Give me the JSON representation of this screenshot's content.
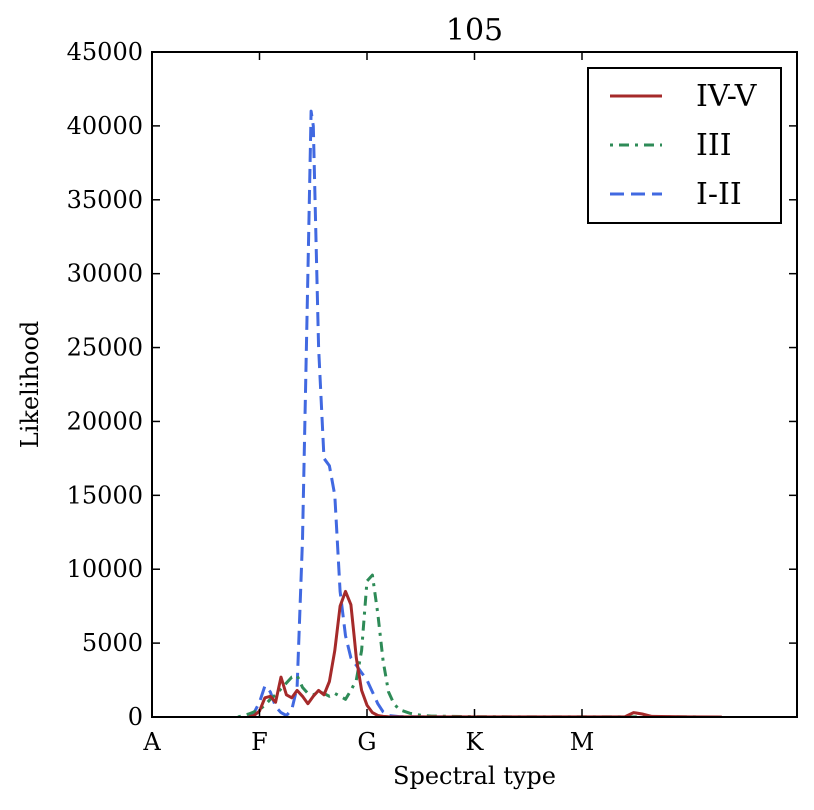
{
  "chart_data": {
    "type": "line",
    "title": "105",
    "xlabel": "Spectral type",
    "ylabel": "Likelihood",
    "xlim": [
      0,
      6
    ],
    "ylim": [
      0,
      45000
    ],
    "x_ticks": [
      {
        "value": 0,
        "label": "A"
      },
      {
        "value": 1,
        "label": "F"
      },
      {
        "value": 2,
        "label": "G"
      },
      {
        "value": 3,
        "label": "K"
      },
      {
        "value": 4,
        "label": "M"
      }
    ],
    "y_ticks": [
      {
        "value": 0,
        "label": "0"
      },
      {
        "value": 5000,
        "label": "5000"
      },
      {
        "value": 10000,
        "label": "10000"
      },
      {
        "value": 15000,
        "label": "15000"
      },
      {
        "value": 20000,
        "label": "20000"
      },
      {
        "value": 25000,
        "label": "25000"
      },
      {
        "value": 30000,
        "label": "30000"
      },
      {
        "value": 35000,
        "label": "35000"
      },
      {
        "value": 40000,
        "label": "40000"
      },
      {
        "value": 45000,
        "label": "45000"
      }
    ],
    "legend_position": "top-right",
    "series": [
      {
        "name": "IV-V",
        "color": "#a52a2a",
        "style": "solid",
        "x": [
          0.9,
          0.95,
          1.0,
          1.05,
          1.1,
          1.15,
          1.2,
          1.25,
          1.3,
          1.35,
          1.4,
          1.45,
          1.5,
          1.55,
          1.6,
          1.65,
          1.7,
          1.75,
          1.8,
          1.85,
          1.88,
          1.9,
          1.95,
          2.0,
          2.05,
          2.1,
          2.15,
          2.2,
          2.3,
          2.5,
          3.0,
          3.5,
          4.0,
          4.4,
          4.48,
          4.56,
          4.65,
          5.0,
          5.3
        ],
        "y": [
          0,
          100,
          400,
          1300,
          1400,
          1000,
          2700,
          1500,
          1300,
          1800,
          1400,
          900,
          1400,
          1800,
          1500,
          2400,
          4500,
          7500,
          8500,
          7600,
          5500,
          4000,
          1800,
          800,
          300,
          100,
          40,
          20,
          10,
          5,
          5,
          5,
          5,
          20,
          300,
          200,
          40,
          5,
          0
        ]
      },
      {
        "name": "III",
        "color": "#2e8b57",
        "style": "dashdot",
        "x": [
          0.8,
          0.9,
          1.0,
          1.05,
          1.1,
          1.15,
          1.2,
          1.25,
          1.3,
          1.35,
          1.4,
          1.45,
          1.5,
          1.55,
          1.6,
          1.65,
          1.7,
          1.75,
          1.8,
          1.85,
          1.9,
          1.95,
          2.0,
          2.05,
          2.1,
          2.15,
          2.2,
          2.25,
          2.3,
          2.4,
          2.5,
          2.6,
          3.0,
          3.5,
          4.0,
          5.0,
          5.3
        ],
        "y": [
          0,
          200,
          500,
          800,
          1200,
          1500,
          1900,
          2300,
          2700,
          2800,
          2000,
          1600,
          1500,
          1700,
          1600,
          1400,
          1600,
          1400,
          1200,
          1800,
          2500,
          4500,
          9200,
          9600,
          7000,
          3800,
          1700,
          900,
          500,
          250,
          120,
          60,
          20,
          10,
          5,
          5,
          0
        ]
      },
      {
        "name": "I-II",
        "color": "#4169e1",
        "style": "dashed",
        "x": [
          0.9,
          0.95,
          1.0,
          1.05,
          1.1,
          1.15,
          1.2,
          1.25,
          1.3,
          1.35,
          1.4,
          1.45,
          1.48,
          1.5,
          1.52,
          1.55,
          1.6,
          1.65,
          1.7,
          1.75,
          1.8,
          1.85,
          1.9,
          1.95,
          2.0,
          2.05,
          2.1,
          2.15,
          2.2,
          2.3,
          2.45,
          2.7,
          3.0
        ],
        "y": [
          0,
          300,
          1000,
          2100,
          1700,
          700,
          300,
          100,
          500,
          2000,
          12000,
          30000,
          41000,
          40000,
          34000,
          25000,
          17500,
          17000,
          15000,
          8500,
          5500,
          4000,
          3500,
          3000,
          2500,
          1700,
          900,
          350,
          100,
          30,
          10,
          5,
          0
        ]
      }
    ]
  }
}
